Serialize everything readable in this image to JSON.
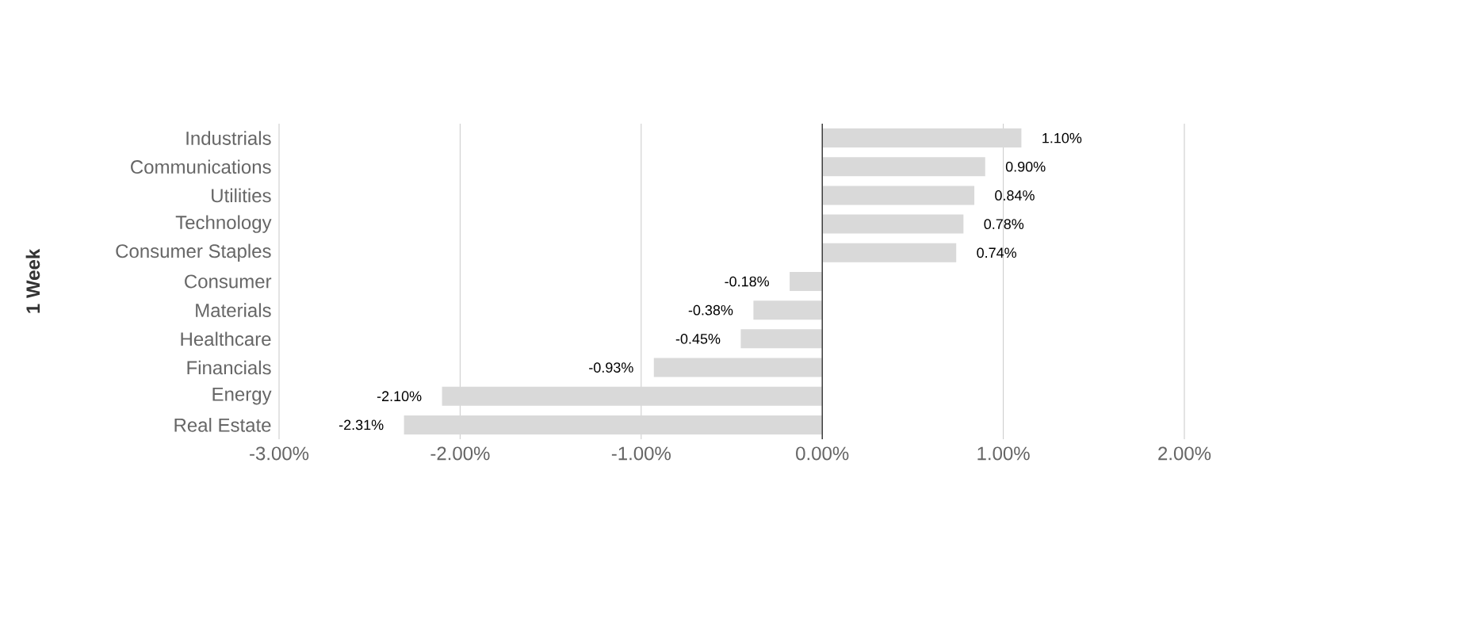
{
  "chart_data": {
    "type": "bar",
    "orientation": "horizontal",
    "ylabel": "1 Week",
    "categories": [
      "Industrials",
      "Communications",
      "Utilities",
      "Technology",
      "Consumer Staples",
      "Consumer",
      "Materials",
      "Healthcare",
      "Financials",
      "Energy",
      "Real Estate"
    ],
    "values": [
      1.1,
      0.9,
      0.84,
      0.78,
      0.74,
      -0.18,
      -0.38,
      -0.45,
      -0.93,
      -2.1,
      -2.31
    ],
    "value_labels": [
      "1.10%",
      "0.90%",
      "0.84%",
      "0.78%",
      "0.74%",
      "-0.18%",
      "-0.38%",
      "-0.45%",
      "-0.93%",
      "-2.10%",
      "-2.31%"
    ],
    "color": "#d9d9d9",
    "xlim": [
      -3,
      2
    ],
    "xticks": [
      {
        "value": -3,
        "label": "-3.00%"
      },
      {
        "value": -2,
        "label": "-2.00%"
      },
      {
        "value": -1,
        "label": "-1.00%"
      },
      {
        "value": 0,
        "label": "0.00%"
      },
      {
        "value": 1,
        "label": "1.00%"
      },
      {
        "value": 2,
        "label": "2.00%"
      }
    ],
    "grid": "x"
  }
}
